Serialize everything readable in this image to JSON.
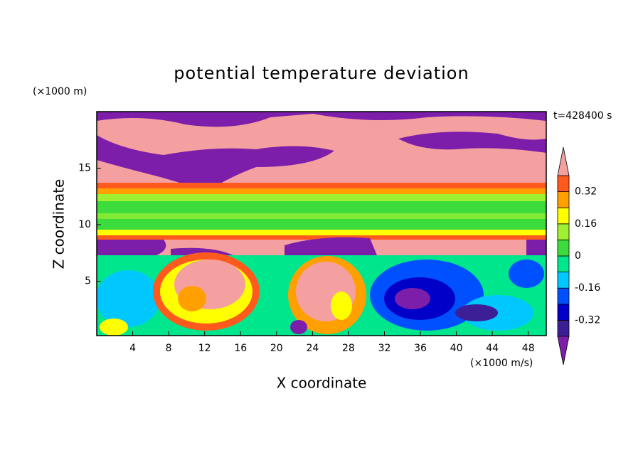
{
  "chart_data": {
    "type": "contour",
    "title": "potential temperature deviation",
    "x_label": "X coordinate",
    "y_label": "Z coordinate",
    "x_unit": "(×1000 m/s)",
    "y_unit": "(×1000 m)",
    "annotation": "t=428400 s",
    "xlim": [
      0,
      50
    ],
    "ylim": [
      0.2,
      20
    ],
    "xticks": [
      4,
      8,
      12,
      16,
      20,
      24,
      28,
      32,
      36,
      40,
      44,
      48
    ],
    "yticks": [
      5,
      10,
      15
    ],
    "colorbar": {
      "levels": [
        -0.4,
        -0.32,
        -0.24,
        -0.16,
        -0.08,
        0,
        0.08,
        0.16,
        0.24,
        0.32,
        0.4
      ],
      "colors": [
        "#3c1e96",
        "#0000c8",
        "#0050ff",
        "#00c8ff",
        "#00e68c",
        "#3cdc3c",
        "#a0f032",
        "#ffff00",
        "#ffa000",
        "#ff5a1e"
      ],
      "under_color": "#7d1eaa",
      "over_color": "#f5a0a0",
      "ticks": [
        0.32,
        0.16,
        0,
        -0.16,
        -0.32
      ]
    }
  }
}
